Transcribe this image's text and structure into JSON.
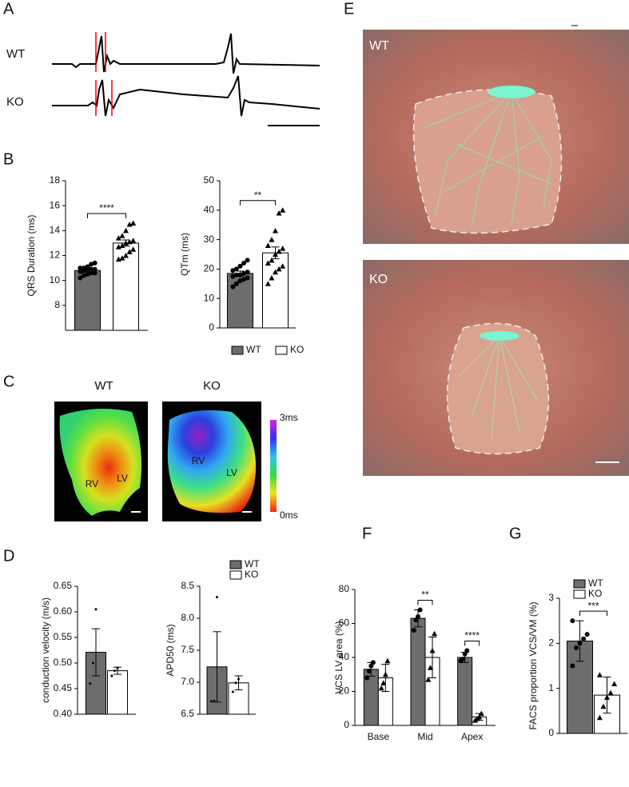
{
  "panel_labels": [
    "A",
    "B",
    "C",
    "D",
    "E",
    "F",
    "G"
  ],
  "panel_A": {
    "rows": [
      "WT",
      "KO"
    ]
  },
  "panel_C": {
    "maps": [
      "WT",
      "KO"
    ],
    "wt_regions": [
      "RV",
      "LV"
    ],
    "ko_regions": [
      "RV",
      "LV"
    ],
    "scale": [
      "3ms",
      "0ms"
    ]
  },
  "panel_E": {
    "photos": [
      "WT",
      "KO"
    ]
  },
  "chart_data": [
    {
      "type": "bar",
      "ylabel": "QRS Duration (ms)",
      "categories": [
        null
      ],
      "ylim": [
        6,
        18
      ],
      "yticks": [
        8,
        10,
        12,
        14,
        16,
        18
      ],
      "significance": [
        "****"
      ],
      "series": [
        {
          "color": "#6d6d6d",
          "shape": "circle",
          "values": [
            10.8
          ],
          "errors": [
            0.1
          ],
          "points": [
            [
              10.2,
              10.4,
              10.5,
              10.6,
              10.6,
              10.7,
              10.8,
              10.8,
              10.9,
              10.9,
              11.0,
              11.0,
              11.1,
              11.3,
              11.4
            ]
          ]
        },
        {
          "color": "#ffffff",
          "shape": "triangle",
          "values": [
            13.0
          ],
          "errors": [
            0.25
          ],
          "points": [
            [
              11.7,
              11.8,
              12.0,
              12.3,
              12.5,
              12.7,
              12.8,
              13.0,
              13.1,
              13.2,
              13.4,
              13.6,
              14.0,
              14.5,
              14.6
            ]
          ]
        }
      ]
    },
    {
      "type": "bar",
      "ylabel": "QTm (ms)",
      "categories": [
        null
      ],
      "ylim": [
        0,
        50
      ],
      "yticks": [
        0,
        10,
        20,
        30,
        40,
        50
      ],
      "significance": [
        "**"
      ],
      "legend": [
        "WT",
        "KO"
      ],
      "series": [
        {
          "color": "#6d6d6d",
          "shape": "circle",
          "values": [
            18.5
          ],
          "errors": [
            0.8
          ],
          "points": [
            [
              14,
              15,
              16,
              16.5,
              17,
              17.5,
              18,
              18,
              18.5,
              19,
              19.5,
              20,
              21,
              22,
              23
            ]
          ]
        },
        {
          "color": "#ffffff",
          "shape": "triangle",
          "values": [
            25.5
          ],
          "errors": [
            2
          ],
          "points": [
            [
              15,
              17,
              19,
              20,
              21,
              22,
              23,
              25,
              26,
              27,
              28,
              30,
              33,
              39,
              40
            ]
          ]
        }
      ]
    },
    {
      "type": "bar",
      "ylabel": "conduction velocity (m/s)",
      "categories": [
        null
      ],
      "ylim": [
        0.4,
        0.65
      ],
      "yticks": [
        {
          "value": 0.4,
          "label": "0.40"
        },
        0.45,
        {
          "value": 0.5,
          "label": "0.50"
        },
        0.55,
        {
          "value": 0.6,
          "label": "0.60"
        },
        0.65
      ],
      "significance": [
        null
      ],
      "series": [
        {
          "color": "#6d6d6d",
          "shape": "dot",
          "values": [
            0.521
          ],
          "errors": [
            0.046
          ],
          "points": [
            [
              0.46,
              0.5,
              0.605
            ]
          ]
        },
        {
          "color": "#ffffff",
          "shape": "dot",
          "values": [
            0.485
          ],
          "errors": [
            0.007
          ],
          "points": [
            [
              0.475,
              0.485,
              0.49
            ]
          ]
        }
      ]
    },
    {
      "type": "bar",
      "ylabel": "APD50 (ms)",
      "categories": [
        null
      ],
      "ylim": [
        6.5,
        8.5
      ],
      "yticks": [
        6.5,
        {
          "value": 7,
          "label": "7.0"
        },
        7.5,
        {
          "value": 8,
          "label": "8.0"
        },
        8.5
      ],
      "significance": [
        null
      ],
      "legend": [
        "WT",
        "KO"
      ],
      "series": [
        {
          "color": "#6d6d6d",
          "shape": "dot",
          "values": [
            7.24
          ],
          "errors": [
            0.55
          ],
          "points": [
            [
              6.7,
              6.71,
              8.33
            ]
          ]
        },
        {
          "color": "#ffffff",
          "shape": "dot",
          "values": [
            6.99
          ],
          "errors": [
            0.11
          ],
          "points": [
            [
              6.85,
              6.99,
              7.05
            ]
          ]
        }
      ]
    },
    {
      "type": "bar",
      "ylabel": "VCS LV area (%)",
      "categories": [
        "Base",
        "Mid",
        "Apex"
      ],
      "ylim": [
        0,
        80
      ],
      "yticks": [
        0,
        20,
        40,
        60,
        80
      ],
      "significance": [
        null,
        "**",
        "****"
      ],
      "series": [
        {
          "color": "#6d6d6d",
          "shape": "circle",
          "values": [
            33,
            63,
            40
          ],
          "errors": [
            4,
            5,
            3
          ],
          "points": [
            [
              28,
              32,
              35,
              37
            ],
            [
              56,
              62,
              64,
              68
            ],
            [
              38,
              39,
              42,
              44
            ]
          ]
        },
        {
          "color": "#ffffff",
          "shape": "triangle",
          "values": [
            28,
            40,
            5
          ],
          "errors": [
            8,
            12,
            2
          ],
          "points": [
            [
              22,
              25,
              30,
              38
            ],
            [
              27,
              34,
              44,
              54
            ],
            [
              3,
              4,
              5,
              7
            ]
          ]
        }
      ]
    },
    {
      "type": "bar",
      "ylabel": "FACS proportion VCS/VM (%)",
      "categories": [
        null
      ],
      "ylim": [
        0,
        3
      ],
      "yticks": [
        0,
        1,
        2,
        3
      ],
      "significance": [
        "***"
      ],
      "legend": [
        "WT",
        "KO"
      ],
      "series": [
        {
          "color": "#6d6d6d",
          "shape": "circle",
          "values": [
            2.05
          ],
          "errors": [
            0.45
          ],
          "points": [
            [
              1.5,
              1.9,
              2.0,
              2.1,
              2.2,
              2.5
            ]
          ]
        },
        {
          "color": "#ffffff",
          "shape": "triangle",
          "values": [
            0.85
          ],
          "errors": [
            0.4
          ],
          "points": [
            [
              0.35,
              0.6,
              0.8,
              0.9,
              1.1,
              1.3
            ]
          ]
        }
      ]
    }
  ]
}
